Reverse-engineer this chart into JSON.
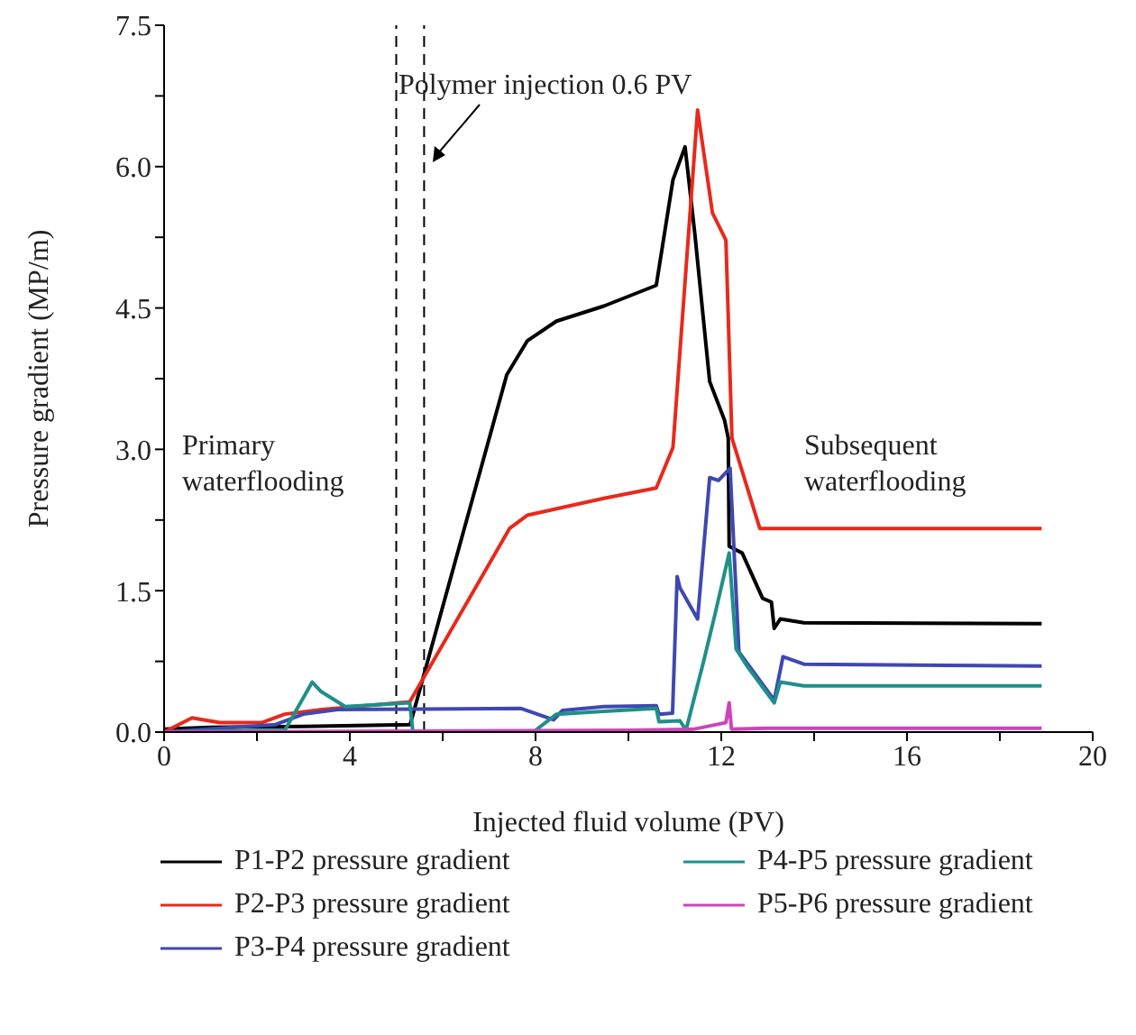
{
  "chart_data": {
    "type": "line",
    "xlabel": "Injected fluid volume (PV)",
    "ylabel": "Pressure gradient (MP/m)",
    "xlim": [
      0,
      20
    ],
    "ylim": [
      0,
      7.5
    ],
    "xticks": [
      0,
      {
        "value": 2,
        "label": null
      },
      4,
      {
        "value": 6,
        "label": null
      },
      8,
      {
        "value": 10,
        "label": null
      },
      12,
      {
        "value": 14,
        "label": null
      },
      16,
      {
        "value": 18,
        "label": null
      },
      20
    ],
    "yticks": [
      {
        "value": 0,
        "label": "0.0"
      },
      {
        "value": 0.75,
        "label": null
      },
      {
        "value": 1.5,
        "label": "1.5"
      },
      {
        "value": 2.25,
        "label": null
      },
      {
        "value": 3,
        "label": "3.0"
      },
      {
        "value": 3.75,
        "label": null
      },
      {
        "value": 4.5,
        "label": "4.5"
      },
      {
        "value": 5.25,
        "label": null
      },
      {
        "value": 6,
        "label": "6.0"
      },
      {
        "value": 6.75,
        "label": null
      },
      {
        "value": 7.5,
        "label": "7.5"
      }
    ],
    "legend": "bottom",
    "line_style": "solid",
    "ref_lines": [
      {
        "axis": "x",
        "value": 5.0,
        "color": "#000000",
        "line_style": "dashed"
      },
      {
        "axis": "x",
        "value": 5.6,
        "color": "#000000",
        "line_style": "dashed"
      }
    ],
    "annotations": [
      "Polymer injection 0.6 PV",
      "Primary waterflooding",
      "Subsequent waterflooding"
    ],
    "series": [
      {
        "name": "P1-P2 pressure gradient",
        "color": "#000000",
        "x": [
          0,
          1,
          3,
          5.3,
          7.38,
          7.82,
          8.45,
          9.47,
          10.6,
          10.96,
          11.22,
          11.43,
          11.75,
          12.07,
          12.15,
          12.17,
          12.45,
          12.89,
          13.08,
          13.14,
          13.27,
          13.78,
          18.9
        ],
        "values": [
          0.03,
          0.05,
          0.06,
          0.08,
          3.79,
          4.15,
          4.36,
          4.52,
          4.74,
          5.86,
          6.21,
          5.29,
          3.72,
          3.31,
          3.12,
          1.97,
          1.9,
          1.42,
          1.38,
          1.1,
          1.2,
          1.16,
          1.15
        ]
      },
      {
        "name": "P2-P3 pressure gradient",
        "color": "#e8291c",
        "x": [
          0,
          0.6,
          1.2,
          2.1,
          2.6,
          3.4,
          5.29,
          7.44,
          7.82,
          9.47,
          10.6,
          10.96,
          11.05,
          11.49,
          11.81,
          12.1,
          12.23,
          12.83,
          18.9
        ],
        "values": [
          0,
          0.15,
          0.1,
          0.1,
          0.19,
          0.24,
          0.32,
          2.16,
          2.3,
          2.48,
          2.59,
          3.02,
          3.63,
          6.6,
          5.51,
          5.22,
          3.12,
          2.16,
          2.16
        ]
      },
      {
        "name": "P3-P4 pressure gradient",
        "color": "#3f48b0",
        "x": [
          0,
          1.5,
          2.4,
          3.0,
          3.74,
          7.69,
          8.39,
          8.58,
          9.47,
          10.6,
          10.66,
          10.95,
          11.05,
          11.11,
          11.49,
          11.75,
          11.94,
          12.19,
          12.38,
          13.14,
          13.33,
          13.78,
          18.9
        ],
        "values": [
          0,
          0.05,
          0.08,
          0.19,
          0.24,
          0.25,
          0.13,
          0.23,
          0.27,
          0.28,
          0.19,
          0.2,
          1.65,
          1.53,
          1.2,
          2.7,
          2.67,
          2.8,
          0.85,
          0.34,
          0.8,
          0.72,
          0.7
        ]
      },
      {
        "name": "P4-P5 pressure gradient",
        "color": "#1f8f8a",
        "x": [
          0,
          2.6,
          3.19,
          3.38,
          3.9,
          5.29,
          5.36,
          7.95,
          8.45,
          9.47,
          10.6,
          10.66,
          11.11,
          11.24,
          11.62,
          11.87,
          12.17,
          12.32,
          12.57,
          13.14,
          13.27,
          13.78,
          18.9
        ],
        "values": [
          0,
          0.02,
          0.53,
          0.43,
          0.27,
          0.31,
          0,
          0,
          0.19,
          0.22,
          0.25,
          0.11,
          0.12,
          0.02,
          0.75,
          1.26,
          1.9,
          0.88,
          0.69,
          0.31,
          0.53,
          0.49,
          0.49
        ]
      },
      {
        "name": "P5-P6 pressure gradient",
        "color": "#cc44bb",
        "x": [
          0,
          5,
          10,
          11.4,
          11.9,
          12.1,
          12.17,
          12.22,
          13,
          18.9
        ],
        "values": [
          0,
          0.01,
          0.02,
          0.03,
          0.08,
          0.1,
          0.31,
          0.03,
          0.04,
          0.04
        ]
      }
    ]
  }
}
